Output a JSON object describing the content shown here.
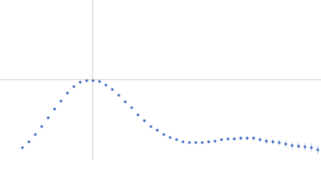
{
  "chart_data": {
    "type": "scatter",
    "x": [
      0.42,
      0.54,
      0.66,
      0.78,
      0.9,
      1.02,
      1.14,
      1.26,
      1.38,
      1.5,
      1.62,
      1.74,
      1.86,
      1.98,
      2.1,
      2.22,
      2.34,
      2.46,
      2.58,
      2.7,
      2.82,
      2.94,
      3.06,
      3.18,
      3.3,
      3.42,
      3.54,
      3.66,
      3.78,
      3.9,
      4.02,
      4.14,
      4.26,
      4.38,
      4.5,
      4.62,
      4.74,
      4.86,
      4.98,
      5.1,
      5.22,
      5.34,
      5.46,
      5.58,
      5.7,
      5.82,
      5.94
    ],
    "values": [
      0.17,
      0.25,
      0.35,
      0.46,
      0.58,
      0.7,
      0.81,
      0.92,
      1.01,
      1.07,
      1.09,
      1.09,
      1.08,
      1.03,
      0.97,
      0.89,
      0.8,
      0.72,
      0.62,
      0.54,
      0.46,
      0.41,
      0.35,
      0.31,
      0.28,
      0.25,
      0.24,
      0.24,
      0.24,
      0.25,
      0.26,
      0.28,
      0.29,
      0.29,
      0.3,
      0.3,
      0.3,
      0.28,
      0.26,
      0.25,
      0.24,
      0.22,
      0.2,
      0.19,
      0.18,
      0.17,
      0.14
    ],
    "errors": [
      0.005,
      0.005,
      0.005,
      0.005,
      0.005,
      0.005,
      0.005,
      0.005,
      0.005,
      0.005,
      0.005,
      0.005,
      0.005,
      0.005,
      0.005,
      0.005,
      0.006,
      0.006,
      0.007,
      0.007,
      0.008,
      0.008,
      0.009,
      0.01,
      0.011,
      0.012,
      0.013,
      0.015,
      0.016,
      0.018,
      0.02,
      0.022,
      0.024,
      0.026,
      0.028,
      0.03,
      0.032,
      0.034,
      0.036,
      0.038,
      0.04,
      0.042,
      0.045,
      0.048,
      0.05,
      0.055,
      0.06
    ],
    "color": "#3a68c0",
    "error_color": "#a9bde6",
    "xlim": [
      0,
      6
    ],
    "ylim": [
      0,
      2.2
    ],
    "guides": {
      "x": 1.732,
      "y": 1.104,
      "color": "#d0d0d0"
    }
  }
}
